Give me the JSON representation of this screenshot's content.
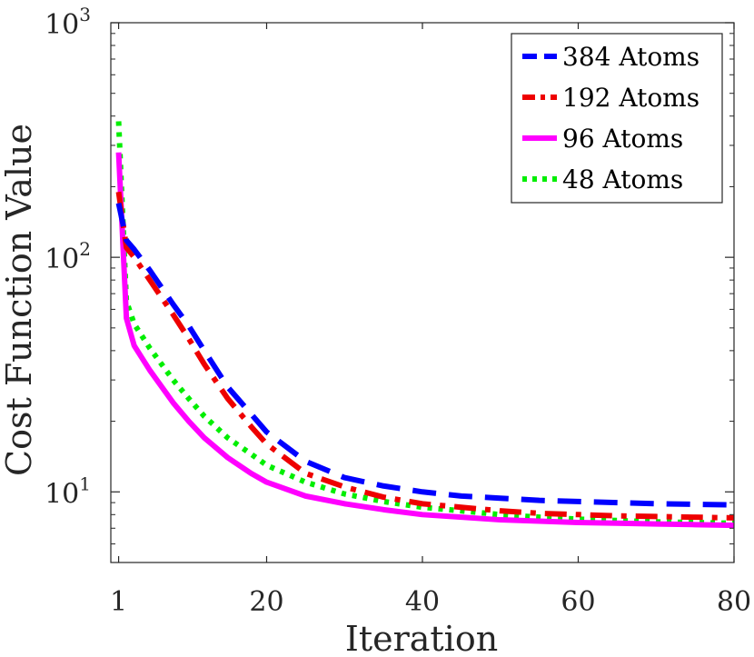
{
  "chart_data": {
    "type": "line",
    "title": "",
    "xlabel": "Iteration",
    "ylabel": "Cost Function Value",
    "y_scale": "log",
    "xlim": [
      0,
      80
    ],
    "ylim": [
      5,
      1000
    ],
    "xticks": [
      {
        "value": 1,
        "label": "1"
      },
      {
        "value": 20,
        "label": "20"
      },
      {
        "value": 40,
        "label": "40"
      },
      {
        "value": 60,
        "label": "60"
      },
      {
        "value": 80,
        "label": "80"
      }
    ],
    "yticks": [
      {
        "value": 10,
        "base": "10",
        "exp": "1"
      },
      {
        "value": 100,
        "base": "10",
        "exp": "2"
      },
      {
        "value": 1000,
        "base": "10",
        "exp": "3"
      }
    ],
    "grid": false,
    "legend_position": "top-right",
    "x": [
      1,
      2,
      3,
      5,
      8,
      10,
      12,
      15,
      18,
      20,
      25,
      30,
      35,
      40,
      45,
      50,
      55,
      60,
      65,
      70,
      75,
      80
    ],
    "series": [
      {
        "name": "384 Atoms",
        "color": "#0000ff",
        "dash": "dashed",
        "values": [
          170,
          118,
          108,
          88,
          63,
          51,
          40,
          28,
          21.5,
          18,
          13.5,
          11.5,
          10.6,
          10,
          9.6,
          9.4,
          9.2,
          9.1,
          9.0,
          8.9,
          8.85,
          8.8
        ]
      },
      {
        "name": "192 Atoms",
        "color": "#ee0000",
        "dash": "dashdot",
        "values": [
          190,
          110,
          100,
          80,
          57,
          45,
          35,
          25,
          19,
          16,
          12,
          10.5,
          9.5,
          8.9,
          8.6,
          8.3,
          8.1,
          8.0,
          7.9,
          7.85,
          7.8,
          7.75
        ]
      },
      {
        "name": "96 Atoms",
        "color": "#ff00ff",
        "dash": "solid",
        "values": [
          280,
          55,
          42,
          33,
          24,
          20,
          17,
          14,
          12,
          11,
          9.6,
          8.9,
          8.4,
          8.0,
          7.8,
          7.6,
          7.5,
          7.4,
          7.35,
          7.3,
          7.25,
          7.2
        ]
      },
      {
        "name": "48 Atoms",
        "color": "#00ee00",
        "dash": "dotted",
        "values": [
          380,
          65,
          52,
          41,
          30,
          25,
          21,
          17,
          14.5,
          13,
          11,
          9.8,
          9.1,
          8.6,
          8.3,
          8.0,
          7.8,
          7.65,
          7.55,
          7.45,
          7.4,
          7.35
        ]
      }
    ]
  }
}
